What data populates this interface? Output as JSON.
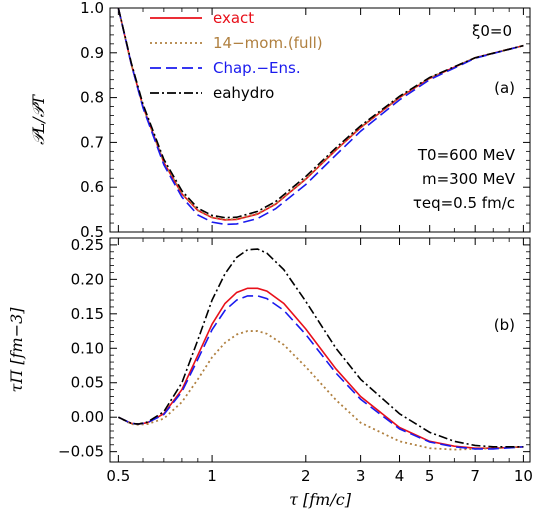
{
  "chart_data": {
    "type": "line",
    "x_scale": "log",
    "xlim": [
      0.47,
      10.5
    ],
    "xlabel": "τ [fm/c]",
    "x_ticks": [
      0.5,
      1,
      2,
      3,
      4,
      5,
      7,
      10
    ],
    "x_tick_labels": [
      "0.5",
      "1",
      "2",
      "3",
      "4",
      "5",
      "7",
      "10"
    ],
    "grid": false,
    "panels": [
      {
        "id": "a",
        "panel_label": "(a)",
        "ylabel": "𝒫L/𝒫T",
        "ylim": [
          0.5,
          1.0
        ],
        "y_ticks": [
          0.5,
          0.6,
          0.7,
          0.8,
          0.9,
          1.0
        ],
        "y_tick_labels": [
          "0.5",
          "0.6",
          "0.7",
          "0.8",
          "0.9",
          "1.0"
        ],
        "corner_text": "ξ0=0",
        "params": [
          "T0=600 MeV",
          "m=300 MeV",
          "τeq=0.5 fm/c"
        ],
        "legend_position": "top-left",
        "series": [
          {
            "name": "exact",
            "color": "#e8101a",
            "dash": "solid",
            "x": [
              0.5,
              0.55,
              0.6,
              0.7,
              0.8,
              0.9,
              1.0,
              1.1,
              1.2,
              1.4,
              1.6,
              2.0,
              2.5,
              3.0,
              4.0,
              5.0,
              7.0,
              10.0
            ],
            "y": [
              1.0,
              0.875,
              0.78,
              0.655,
              0.585,
              0.548,
              0.532,
              0.527,
              0.528,
              0.54,
              0.562,
              0.618,
              0.683,
              0.733,
              0.8,
              0.843,
              0.889,
              0.916
            ]
          },
          {
            "name": "14−mom.(full)",
            "color": "#b08040",
            "dash": "dotted",
            "x": [
              0.5,
              0.55,
              0.6,
              0.7,
              0.8,
              0.9,
              1.0,
              1.1,
              1.2,
              1.4,
              1.6,
              2.0,
              2.5,
              3.0,
              4.0,
              5.0,
              7.0,
              10.0
            ],
            "y": [
              1.0,
              0.875,
              0.78,
              0.656,
              0.586,
              0.549,
              0.533,
              0.528,
              0.529,
              0.541,
              0.563,
              0.619,
              0.684,
              0.734,
              0.801,
              0.844,
              0.889,
              0.916
            ]
          },
          {
            "name": "Chap.−Ens.",
            "color": "#1a1aee",
            "dash": "dashed",
            "x": [
              0.5,
              0.55,
              0.6,
              0.7,
              0.8,
              0.9,
              1.0,
              1.1,
              1.2,
              1.4,
              1.6,
              2.0,
              2.5,
              3.0,
              4.0,
              5.0,
              7.0,
              10.0
            ],
            "y": [
              1.0,
              0.875,
              0.777,
              0.65,
              0.578,
              0.538,
              0.522,
              0.517,
              0.518,
              0.53,
              0.552,
              0.606,
              0.672,
              0.725,
              0.795,
              0.84,
              0.888,
              0.916
            ]
          },
          {
            "name": "eahydro",
            "color": "#000000",
            "dash": "dashdot",
            "x": [
              0.5,
              0.55,
              0.6,
              0.7,
              0.8,
              0.9,
              1.0,
              1.1,
              1.2,
              1.4,
              1.6,
              2.0,
              2.5,
              3.0,
              4.0,
              5.0,
              7.0,
              10.0
            ],
            "y": [
              1.0,
              0.878,
              0.785,
              0.662,
              0.592,
              0.553,
              0.537,
              0.532,
              0.533,
              0.546,
              0.568,
              0.624,
              0.688,
              0.737,
              0.803,
              0.845,
              0.889,
              0.916
            ]
          }
        ]
      },
      {
        "id": "b",
        "panel_label": "(b)",
        "ylabel": "τΠ [fm−3]",
        "ylim": [
          -0.065,
          0.26
        ],
        "y_ticks": [
          -0.05,
          0.0,
          0.05,
          0.1,
          0.15,
          0.2,
          0.25
        ],
        "y_tick_labels": [
          "−0.05",
          "0.00",
          "0.05",
          "0.10",
          "0.15",
          "0.20",
          "0.25"
        ],
        "series": [
          {
            "name": "exact",
            "color": "#e8101a",
            "dash": "solid",
            "x": [
              0.5,
              0.55,
              0.58,
              0.62,
              0.7,
              0.8,
              0.9,
              1.0,
              1.1,
              1.2,
              1.3,
              1.4,
              1.5,
              1.7,
              2.0,
              2.5,
              3.0,
              4.0,
              5.0,
              6.0,
              7.0,
              8.0,
              10.0
            ],
            "y": [
              0.0,
              -0.009,
              -0.01,
              -0.008,
              0.005,
              0.04,
              0.09,
              0.135,
              0.165,
              0.181,
              0.187,
              0.187,
              0.183,
              0.165,
              0.128,
              0.07,
              0.03,
              -0.015,
              -0.035,
              -0.042,
              -0.045,
              -0.045,
              -0.043
            ]
          },
          {
            "name": "14−mom.(full)",
            "color": "#b08040",
            "dash": "dotted",
            "x": [
              0.5,
              0.55,
              0.58,
              0.62,
              0.7,
              0.8,
              0.9,
              1.0,
              1.1,
              1.2,
              1.3,
              1.4,
              1.5,
              1.7,
              2.0,
              2.5,
              3.0,
              4.0,
              5.0,
              6.0,
              7.0,
              8.0,
              10.0
            ],
            "y": [
              0.0,
              -0.01,
              -0.011,
              -0.01,
              -0.002,
              0.022,
              0.055,
              0.087,
              0.108,
              0.12,
              0.125,
              0.125,
              0.121,
              0.105,
              0.073,
              0.025,
              -0.008,
              -0.035,
              -0.045,
              -0.047,
              -0.046,
              -0.045,
              -0.043
            ]
          },
          {
            "name": "Chap.−Ens.",
            "color": "#1a1aee",
            "dash": "dashed",
            "x": [
              0.5,
              0.55,
              0.58,
              0.62,
              0.7,
              0.8,
              0.9,
              1.0,
              1.1,
              1.2,
              1.3,
              1.4,
              1.5,
              1.7,
              2.0,
              2.5,
              3.0,
              4.0,
              5.0,
              6.0,
              7.0,
              8.0,
              10.0
            ],
            "y": [
              0.0,
              -0.009,
              -0.01,
              -0.008,
              0.004,
              0.037,
              0.084,
              0.127,
              0.155,
              0.17,
              0.176,
              0.176,
              0.172,
              0.155,
              0.12,
              0.064,
              0.026,
              -0.017,
              -0.036,
              -0.043,
              -0.046,
              -0.046,
              -0.043
            ]
          },
          {
            "name": "eahydro",
            "color": "#000000",
            "dash": "dashdot",
            "x": [
              0.5,
              0.55,
              0.58,
              0.62,
              0.7,
              0.8,
              0.9,
              1.0,
              1.1,
              1.2,
              1.3,
              1.4,
              1.5,
              1.7,
              2.0,
              2.5,
              3.0,
              4.0,
              5.0,
              6.0,
              7.0,
              8.0,
              10.0
            ],
            "y": [
              0.0,
              -0.009,
              -0.01,
              -0.007,
              0.008,
              0.05,
              0.112,
              0.17,
              0.208,
              0.232,
              0.243,
              0.244,
              0.238,
              0.214,
              0.168,
              0.1,
              0.055,
              0.005,
              -0.022,
              -0.035,
              -0.041,
              -0.043,
              -0.043
            ]
          }
        ]
      }
    ]
  }
}
